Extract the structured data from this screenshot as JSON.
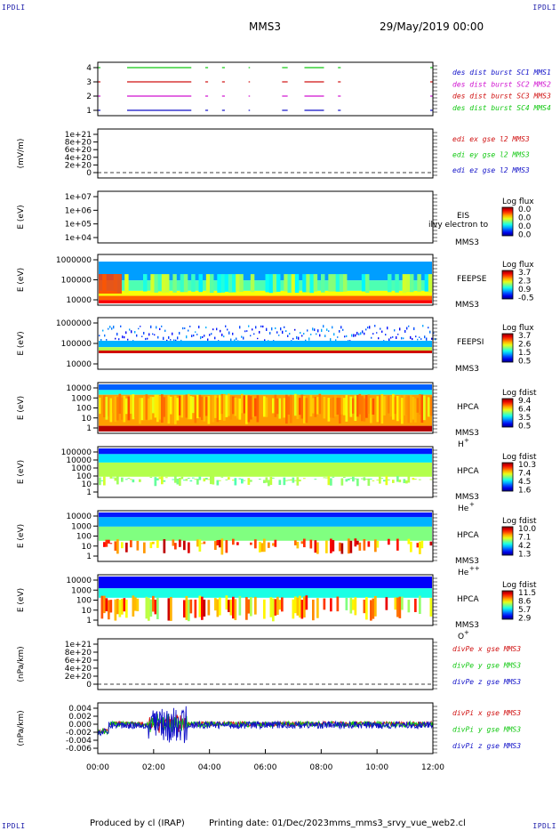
{
  "header": {
    "corner_left_top": "IPDLI",
    "corner_right_top": "IPDLI",
    "corner_left_bottom": "IPDLI",
    "corner_right_bottom": "IPDLI",
    "mission": "MMS3",
    "date": "29/May/2019 00:00"
  },
  "footer": {
    "produced_by": "Produced by cl (IRAP)",
    "printing_date": "Printing date: 01/Dec/2023",
    "script_name": "mms_mms3_srvy_vue_web2.cl"
  },
  "chart_data": {
    "type": "multi-panel time series",
    "x_ticks": [
      "00:00",
      "02:00",
      "04:00",
      "06:00",
      "08:00",
      "10:00",
      "12:00"
    ],
    "x_range_hours": [
      0,
      12
    ],
    "panels": [
      {
        "id": "burst",
        "type": "timeline",
        "ylabel": "",
        "yticks": [
          "4",
          "3",
          "2",
          "1"
        ],
        "legend": [
          {
            "label": "des dist burst SC1 MMS1",
            "color": "#1010c8"
          },
          {
            "label": "des dist burst SC2 MMS2",
            "color": "#d010d0"
          },
          {
            "label": "des dist burst SC3 MMS3",
            "color": "#d01010"
          },
          {
            "label": "des dist burst SC4 MMS4",
            "color": "#10c810"
          }
        ]
      },
      {
        "id": "edi",
        "type": "line",
        "ylabel": "(mV/m)",
        "yticks": [
          "1e+21",
          "8e+20",
          "6e+20",
          "4e+20",
          "2e+20",
          "0"
        ],
        "legend": [
          {
            "label": "edi ex gse l2 MMS3",
            "color": "#d01010"
          },
          {
            "label": "edi ey gse l2 MMS3",
            "color": "#10c810"
          },
          {
            "label": "edi ez gse l2 MMS3",
            "color": "#1010c8"
          }
        ]
      },
      {
        "id": "eis",
        "type": "spectrogram",
        "ylabel": "E (eV)",
        "yticks": [
          "1e+07",
          "1e+06",
          "1e+05",
          "1e+04"
        ],
        "name_lines": [
          "EIS",
          "MMS3"
        ],
        "overlay_text": "ilvy electron to",
        "cb_title": "Log flux",
        "cb_ticks": [
          "0.0",
          "0.0",
          "0.0",
          "0.0"
        ]
      },
      {
        "id": "feepse",
        "type": "spectrogram",
        "ylabel": "E (eV)",
        "yticks": [
          "1000000",
          "100000",
          "10000"
        ],
        "name_lines": [
          "FEEPSE",
          "MMS3"
        ],
        "cb_title": "Log flux",
        "cb_ticks": [
          "3.7",
          "2.3",
          "0.9",
          "-0.5"
        ]
      },
      {
        "id": "feepsi",
        "type": "spectrogram",
        "ylabel": "E (eV)",
        "yticks": [
          "1000000",
          "100000",
          "10000"
        ],
        "name_lines": [
          "FEEPSI",
          "MMS3"
        ],
        "cb_title": "Log flux",
        "cb_ticks": [
          "3.7",
          "2.6",
          "1.5",
          "0.5"
        ]
      },
      {
        "id": "hpca_h",
        "type": "spectrogram",
        "ylabel": "E (eV)",
        "yticks": [
          "10000",
          "1000",
          "100",
          "10",
          "1"
        ],
        "name_lines": [
          "HPCA",
          "MMS3"
        ],
        "species": "H",
        "charge": "+",
        "cb_title": "Log fdist",
        "cb_ticks": [
          "9.4",
          "6.4",
          "3.5",
          "0.5"
        ]
      },
      {
        "id": "hpca_he",
        "type": "spectrogram",
        "ylabel": "E (eV)",
        "yticks": [
          "100000",
          "10000",
          "1000",
          "100",
          "10",
          "1"
        ],
        "name_lines": [
          "HPCA",
          "MMS3"
        ],
        "species": "He",
        "charge": "+",
        "cb_title": "Log fdist",
        "cb_ticks": [
          "10.3",
          "7.4",
          "4.5",
          "1.6"
        ]
      },
      {
        "id": "hpca_hepp",
        "type": "spectrogram",
        "ylabel": "E (eV)",
        "yticks": [
          "10000",
          "1000",
          "100",
          "10",
          "1"
        ],
        "name_lines": [
          "HPCA",
          "MMS3"
        ],
        "species": "He",
        "charge": "++",
        "cb_title": "Log fdist",
        "cb_ticks": [
          "10.0",
          "7.1",
          "4.2",
          "1.3"
        ]
      },
      {
        "id": "hpca_o",
        "type": "spectrogram",
        "ylabel": "E (eV)",
        "yticks": [
          "10000",
          "1000",
          "100",
          "10",
          "1"
        ],
        "name_lines": [
          "HPCA",
          "MMS3"
        ],
        "species": "O",
        "charge": "+",
        "cb_title": "Log fdist",
        "cb_ticks": [
          "11.5",
          "8.6",
          "5.7",
          "2.9"
        ]
      },
      {
        "id": "divpe",
        "type": "line",
        "ylabel": "(nPa/km)",
        "yticks": [
          "1e+21",
          "8e+20",
          "6e+20",
          "4e+20",
          "2e+20",
          "0"
        ],
        "legend": [
          {
            "label": "divPe x gse MMS3",
            "color": "#d01010"
          },
          {
            "label": "divPe y gse MMS3",
            "color": "#10c810"
          },
          {
            "label": "divPe z gse MMS3",
            "color": "#1010c8"
          }
        ]
      },
      {
        "id": "divpi",
        "type": "line",
        "ylabel": "(nPa/km)",
        "yticks": [
          "0.004",
          "0.002",
          "0.000",
          "-0.002",
          "-0.004",
          "-0.006"
        ],
        "ylim": [
          -0.0065,
          0.0045
        ],
        "legend": [
          {
            "label": "divPi x gse MMS3",
            "color": "#d01010"
          },
          {
            "label": "divPi y gse MMS3",
            "color": "#10c810"
          },
          {
            "label": "divPi z gse MMS3",
            "color": "#1010c8"
          }
        ]
      }
    ]
  }
}
